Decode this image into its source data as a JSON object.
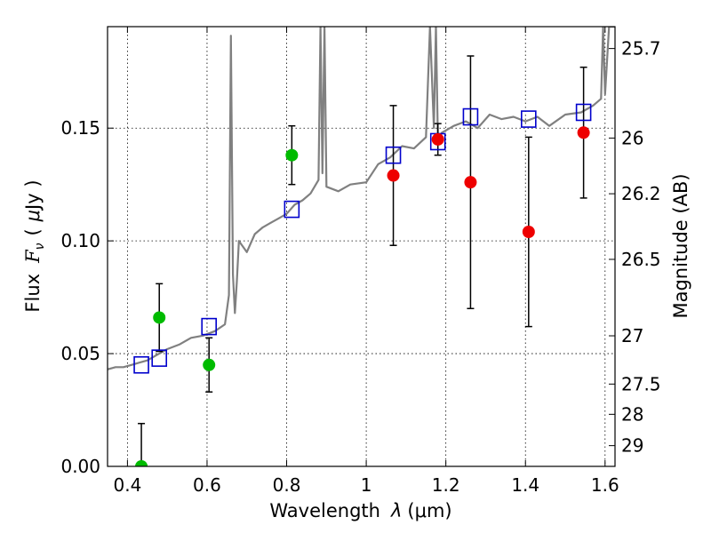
{
  "chart_data": {
    "type": "scatter",
    "xlabel": "Wavelength",
    "xlabel_symbol": "λ",
    "xlabel_unit": "(μm)",
    "ylabel": "Flux",
    "ylabel_symbol": "F",
    "ylabel_subscript": "ν",
    "ylabel_unit_open": "(",
    "ylabel_unit_mu": "μ",
    "ylabel_unit_rest": "Jy )",
    "ylabel_right": "Magnitude (AB)",
    "xlim": [
      0.35,
      1.625
    ],
    "ylim": [
      0.0,
      0.195
    ],
    "grid": true,
    "grid_style": "dotted",
    "x_ticks": [
      0.4,
      0.6,
      0.8,
      1.0,
      1.2,
      1.4,
      1.6
    ],
    "x_tick_labels": [
      "0.4",
      "0.6",
      "0.8",
      "1",
      "1.2",
      "1.4",
      "1.6"
    ],
    "y_ticks": [
      0.0,
      0.05,
      0.1,
      0.15
    ],
    "y_tick_labels": [
      "0.00",
      "0.05",
      "0.10",
      "0.15"
    ],
    "right_ticks": [
      {
        "flux": 0.1853,
        "label": "25.7"
      },
      {
        "flux": 0.1456,
        "label": "26"
      },
      {
        "flux": 0.1209,
        "label": "26.2"
      },
      {
        "flux": 0.0918,
        "label": "26.5"
      },
      {
        "flux": 0.0579,
        "label": "27"
      },
      {
        "flux": 0.0365,
        "label": "27.5"
      },
      {
        "flux": 0.0231,
        "label": "28"
      },
      {
        "flux": 0.0092,
        "label": "29"
      }
    ],
    "colors": {
      "spectrum": "#808080",
      "green": "#00bb00",
      "red": "#ee0000",
      "model": "#0000cc",
      "errorbar": "#000000"
    },
    "model_spectrum": {
      "name": "model spectrum",
      "x": [
        0.35,
        0.37,
        0.39,
        0.41,
        0.43,
        0.45,
        0.47,
        0.5,
        0.53,
        0.56,
        0.59,
        0.62,
        0.645,
        0.655,
        0.66,
        0.665,
        0.67,
        0.675,
        0.68,
        0.7,
        0.72,
        0.74,
        0.76,
        0.78,
        0.8,
        0.82,
        0.84,
        0.86,
        0.88,
        0.885,
        0.89,
        0.895,
        0.9,
        0.93,
        0.96,
        1.0,
        1.03,
        1.06,
        1.09,
        1.12,
        1.15,
        1.16,
        1.17,
        1.175,
        1.18,
        1.19,
        1.2,
        1.22,
        1.25,
        1.28,
        1.31,
        1.34,
        1.37,
        1.4,
        1.43,
        1.46,
        1.5,
        1.54,
        1.57,
        1.59,
        1.595,
        1.6,
        1.61,
        1.625
      ],
      "y": [
        0.043,
        0.044,
        0.044,
        0.045,
        0.046,
        0.047,
        0.049,
        0.052,
        0.054,
        0.057,
        0.058,
        0.06,
        0.063,
        0.076,
        0.191,
        0.085,
        0.068,
        0.082,
        0.1,
        0.095,
        0.103,
        0.106,
        0.108,
        0.11,
        0.112,
        0.116,
        0.118,
        0.121,
        0.127,
        0.195,
        0.13,
        0.195,
        0.124,
        0.122,
        0.125,
        0.126,
        0.134,
        0.137,
        0.142,
        0.141,
        0.146,
        0.195,
        0.15,
        0.195,
        0.145,
        0.148,
        0.149,
        0.151,
        0.153,
        0.15,
        0.156,
        0.154,
        0.155,
        0.153,
        0.155,
        0.151,
        0.156,
        0.157,
        0.16,
        0.163,
        0.195,
        0.165,
        0.195,
        0.195
      ]
    },
    "series": [
      {
        "name": "green points",
        "color": "green",
        "marker": "circle",
        "x": [
          0.435,
          0.48,
          0.605,
          0.813
        ],
        "y": [
          0.0,
          0.066,
          0.045,
          0.138
        ],
        "err": [
          0.019,
          0.015,
          0.012,
          0.013
        ]
      },
      {
        "name": "red points",
        "color": "red",
        "marker": "circle",
        "x": [
          1.068,
          1.18,
          1.262,
          1.408,
          1.546
        ],
        "y": [
          0.129,
          0.145,
          0.126,
          0.104,
          0.148
        ],
        "err": [
          0.031,
          0.007,
          0.056,
          0.042,
          0.029
        ]
      },
      {
        "name": "model photometry",
        "color": "model",
        "marker": "square-open",
        "x": [
          0.435,
          0.48,
          0.605,
          0.813,
          1.068,
          1.18,
          1.262,
          1.408,
          1.546
        ],
        "y": [
          0.045,
          0.048,
          0.062,
          0.114,
          0.138,
          0.144,
          0.155,
          0.154,
          0.157
        ]
      }
    ]
  }
}
